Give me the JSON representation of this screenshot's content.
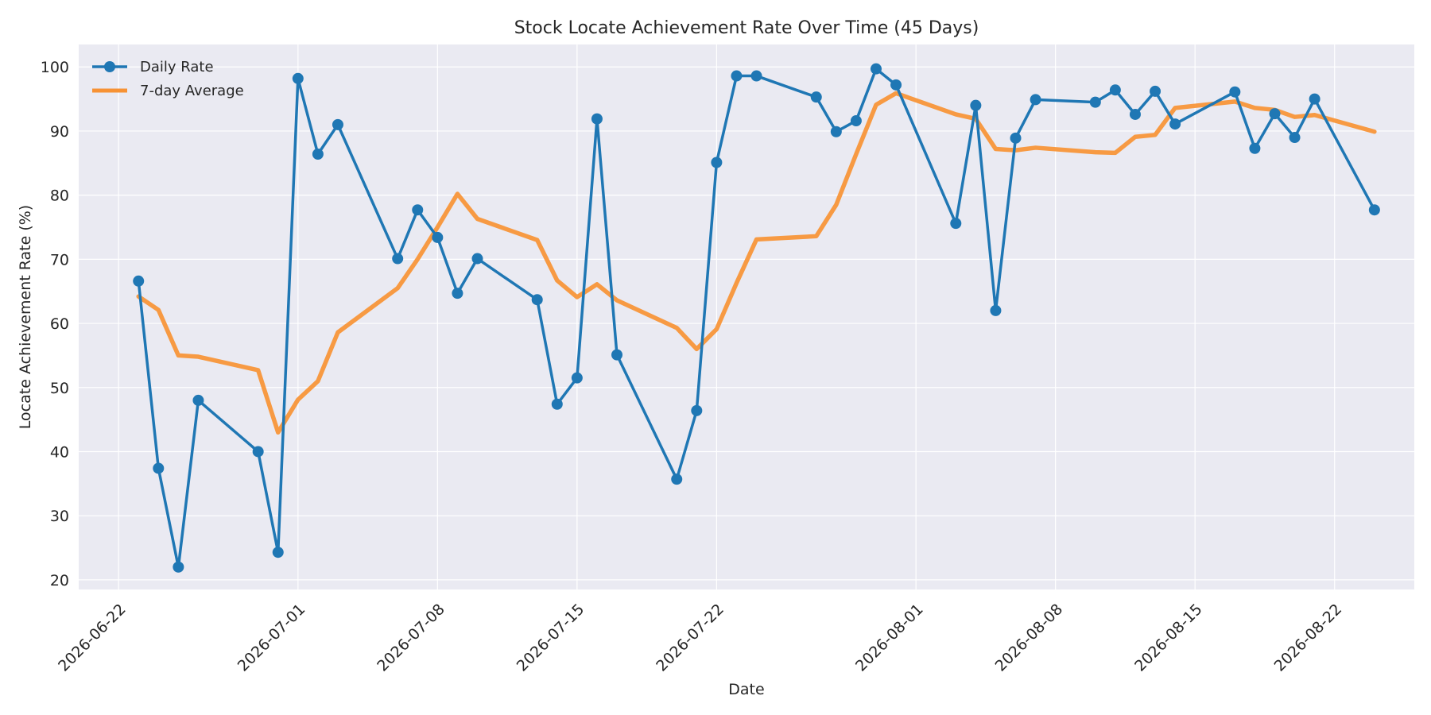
{
  "chart_data": {
    "type": "line",
    "title": "Stock Locate Achievement Rate Over Time (45 Days)",
    "xlabel": "Date",
    "ylabel": "Locate Achievement Rate (%)",
    "x_type": "date",
    "xlim": [
      "2026-06-20",
      "2026-08-26"
    ],
    "ylim": [
      18.5,
      103.5
    ],
    "x_ticks": [
      "2026-06-22",
      "2026-07-01",
      "2026-07-08",
      "2026-07-15",
      "2026-07-22",
      "2026-08-01",
      "2026-08-08",
      "2026-08-15",
      "2026-08-22"
    ],
    "y_ticks": [
      20,
      30,
      40,
      50,
      60,
      70,
      80,
      90,
      100
    ],
    "grid": true,
    "legend_position": "top-left",
    "series": [
      {
        "name": "Daily Rate",
        "color": "#1f77b4",
        "marker": "circle",
        "points": [
          [
            "2026-06-23",
            66.6
          ],
          [
            "2026-06-24",
            37.4
          ],
          [
            "2026-06-25",
            22.0
          ],
          [
            "2026-06-26",
            48.0
          ],
          [
            "2026-06-29",
            40.0
          ],
          [
            "2026-06-30",
            24.3
          ],
          [
            "2026-07-01",
            98.2
          ],
          [
            "2026-07-02",
            86.4
          ],
          [
            "2026-07-03",
            91.0
          ],
          [
            "2026-07-06",
            70.1
          ],
          [
            "2026-07-07",
            77.7
          ],
          [
            "2026-07-08",
            73.4
          ],
          [
            "2026-07-09",
            64.7
          ],
          [
            "2026-07-10",
            70.1
          ],
          [
            "2026-07-13",
            63.7
          ],
          [
            "2026-07-14",
            47.4
          ],
          [
            "2026-07-15",
            51.5
          ],
          [
            "2026-07-16",
            91.9
          ],
          [
            "2026-07-17",
            55.1
          ],
          [
            "2026-07-20",
            35.7
          ],
          [
            "2026-07-21",
            46.4
          ],
          [
            "2026-07-22",
            85.1
          ],
          [
            "2026-07-23",
            98.6
          ],
          [
            "2026-07-24",
            98.6
          ],
          [
            "2026-07-27",
            95.3
          ],
          [
            "2026-07-28",
            89.9
          ],
          [
            "2026-07-29",
            91.6
          ],
          [
            "2026-07-30",
            99.7
          ],
          [
            "2026-07-31",
            97.2
          ],
          [
            "2026-08-03",
            75.6
          ],
          [
            "2026-08-04",
            94.0
          ],
          [
            "2026-08-05",
            62.0
          ],
          [
            "2026-08-06",
            88.9
          ],
          [
            "2026-08-07",
            94.9
          ],
          [
            "2026-08-10",
            94.5
          ],
          [
            "2026-08-11",
            96.4
          ],
          [
            "2026-08-12",
            92.6
          ],
          [
            "2026-08-13",
            96.2
          ],
          [
            "2026-08-14",
            91.1
          ],
          [
            "2026-08-17",
            96.1
          ],
          [
            "2026-08-18",
            87.3
          ],
          [
            "2026-08-19",
            92.7
          ],
          [
            "2026-08-20",
            89.0
          ],
          [
            "2026-08-21",
            95.0
          ],
          [
            "2026-08-24",
            77.7
          ]
        ]
      },
      {
        "name": "7-day Average",
        "color": "#f79234",
        "marker": "none",
        "points": [
          [
            "2026-06-23",
            64.2
          ],
          [
            "2026-06-24",
            62.1
          ],
          [
            "2026-06-25",
            55.0
          ],
          [
            "2026-06-26",
            54.8
          ],
          [
            "2026-06-29",
            52.7
          ],
          [
            "2026-06-30",
            43.0
          ],
          [
            "2026-07-01",
            48.1
          ],
          [
            "2026-07-02",
            51.0
          ],
          [
            "2026-07-03",
            58.6
          ],
          [
            "2026-07-06",
            65.5
          ],
          [
            "2026-07-07",
            70.0
          ],
          [
            "2026-07-08",
            75.0
          ],
          [
            "2026-07-09",
            80.2
          ],
          [
            "2026-07-10",
            76.3
          ],
          [
            "2026-07-13",
            73.0
          ],
          [
            "2026-07-14",
            66.7
          ],
          [
            "2026-07-15",
            64.1
          ],
          [
            "2026-07-16",
            66.1
          ],
          [
            "2026-07-17",
            63.6
          ],
          [
            "2026-07-20",
            59.3
          ],
          [
            "2026-07-21",
            56.0
          ],
          [
            "2026-07-22",
            59.1
          ],
          [
            "2026-07-23",
            66.3
          ],
          [
            "2026-07-24",
            73.1
          ],
          [
            "2026-07-27",
            73.6
          ],
          [
            "2026-07-28",
            78.5
          ],
          [
            "2026-07-29",
            86.4
          ],
          [
            "2026-07-30",
            94.1
          ],
          [
            "2026-07-31",
            95.9
          ],
          [
            "2026-08-03",
            92.6
          ],
          [
            "2026-08-04",
            91.9
          ],
          [
            "2026-08-05",
            87.2
          ],
          [
            "2026-08-06",
            87.0
          ],
          [
            "2026-08-07",
            87.4
          ],
          [
            "2026-08-10",
            86.7
          ],
          [
            "2026-08-11",
            86.6
          ],
          [
            "2026-08-12",
            89.1
          ],
          [
            "2026-08-13",
            89.4
          ],
          [
            "2026-08-14",
            93.6
          ],
          [
            "2026-08-17",
            94.6
          ],
          [
            "2026-08-18",
            93.6
          ],
          [
            "2026-08-19",
            93.3
          ],
          [
            "2026-08-20",
            92.2
          ],
          [
            "2026-08-21",
            92.5
          ],
          [
            "2026-08-24",
            89.9
          ]
        ]
      }
    ]
  }
}
